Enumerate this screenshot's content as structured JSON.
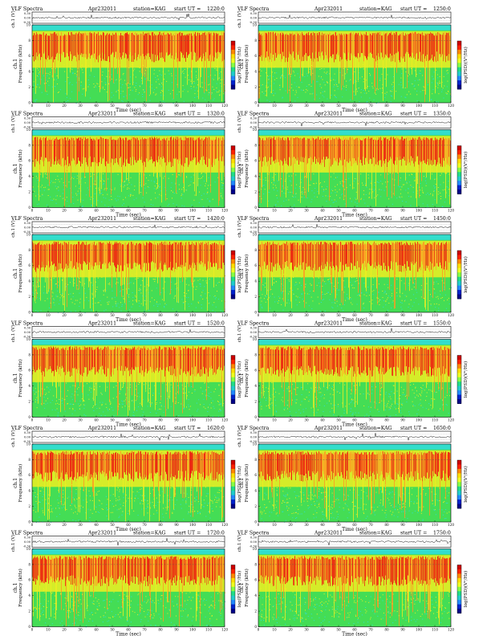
{
  "page": {
    "common": {
      "instrument": "VLF Spectra",
      "date": "Apr232011",
      "station": "station=KAG",
      "ut_prefix": "start UT =",
      "waveform_ylabel": "ch.1 (V)",
      "spec_ylabel_channel": "ch.1",
      "spec_ylabel": "Frequency (kHz)",
      "xlabel": "Time (sec)",
      "colorbar_label": "log(PSD)(V²/Hz)"
    }
  },
  "chart_data": [
    {
      "type": "heatmap",
      "start_ut": "1220:0",
      "x_ticks": [
        0,
        10,
        20,
        30,
        40,
        50,
        60,
        70,
        80,
        90,
        100,
        110,
        120
      ],
      "y_ticks": [
        0,
        2,
        4,
        6,
        8,
        10
      ],
      "wave_ticks": [
        "0.30",
        "0.00",
        "-0.30"
      ],
      "xlim": [
        0,
        120
      ],
      "ylim": [
        0,
        10
      ]
    },
    {
      "type": "heatmap",
      "start_ut": "1250:0",
      "x_ticks": [
        0,
        10,
        20,
        30,
        40,
        50,
        60,
        70,
        80,
        90,
        100,
        110,
        120
      ],
      "y_ticks": [
        0,
        2,
        4,
        6,
        8,
        10
      ],
      "wave_ticks": [
        "0.30",
        "0.00",
        "-0.30"
      ],
      "xlim": [
        0,
        120
      ],
      "ylim": [
        0,
        10
      ]
    },
    {
      "type": "heatmap",
      "start_ut": "1320:0",
      "x_ticks": [
        0,
        10,
        20,
        30,
        40,
        50,
        60,
        70,
        80,
        90,
        100,
        110,
        120
      ],
      "y_ticks": [
        0,
        2,
        4,
        6,
        8,
        10
      ],
      "wave_ticks": [
        "0.30",
        "0.00",
        "-0.30"
      ],
      "xlim": [
        0,
        120
      ],
      "ylim": [
        0,
        10
      ]
    },
    {
      "type": "heatmap",
      "start_ut": "1350:0",
      "x_ticks": [
        0,
        10,
        20,
        30,
        40,
        50,
        60,
        70,
        80,
        90,
        100,
        110,
        120
      ],
      "y_ticks": [
        0,
        2,
        4,
        6,
        8,
        10
      ],
      "wave_ticks": [
        "0.30",
        "0.00",
        "-0.30"
      ],
      "xlim": [
        0,
        120
      ],
      "ylim": [
        0,
        10
      ]
    },
    {
      "type": "heatmap",
      "start_ut": "1420:0",
      "x_ticks": [
        0,
        10,
        20,
        30,
        40,
        50,
        60,
        70,
        80,
        90,
        100,
        110,
        120
      ],
      "y_ticks": [
        0,
        2,
        4,
        6,
        8,
        10
      ],
      "wave_ticks": [
        "0.30",
        "0.00",
        "-0.30"
      ],
      "xlim": [
        0,
        120
      ],
      "ylim": [
        0,
        10
      ]
    },
    {
      "type": "heatmap",
      "start_ut": "1450:0",
      "x_ticks": [
        0,
        10,
        20,
        30,
        40,
        50,
        60,
        70,
        80,
        90,
        100,
        110,
        120
      ],
      "y_ticks": [
        0,
        2,
        4,
        6,
        8,
        10
      ],
      "wave_ticks": [
        "0.30",
        "0.00",
        "-0.30"
      ],
      "xlim": [
        0,
        120
      ],
      "ylim": [
        0,
        10
      ]
    },
    {
      "type": "heatmap",
      "start_ut": "1520:0",
      "x_ticks": [
        0,
        10,
        20,
        30,
        40,
        50,
        60,
        70,
        80,
        90,
        100,
        110,
        120
      ],
      "y_ticks": [
        0,
        2,
        4,
        6,
        8,
        10
      ],
      "wave_ticks": [
        "0.30",
        "0.00",
        "-0.30"
      ],
      "xlim": [
        0,
        120
      ],
      "ylim": [
        0,
        10
      ]
    },
    {
      "type": "heatmap",
      "start_ut": "1550:0",
      "x_ticks": [
        0,
        10,
        20,
        30,
        40,
        50,
        60,
        70,
        80,
        90,
        100,
        110,
        120
      ],
      "y_ticks": [
        0,
        2,
        4,
        6,
        8,
        10
      ],
      "wave_ticks": [
        "0.30",
        "0.00",
        "-0.30"
      ],
      "xlim": [
        0,
        120
      ],
      "ylim": [
        0,
        10
      ]
    },
    {
      "type": "heatmap",
      "start_ut": "1620:0",
      "x_ticks": [
        0,
        10,
        20,
        30,
        40,
        50,
        60,
        70,
        80,
        90,
        100,
        110,
        120
      ],
      "y_ticks": [
        0,
        2,
        4,
        6,
        8,
        10
      ],
      "wave_ticks": [
        "0.30",
        "0.00",
        "-0.30"
      ],
      "xlim": [
        0,
        120
      ],
      "ylim": [
        0,
        10
      ]
    },
    {
      "type": "heatmap",
      "start_ut": "1650:0",
      "x_ticks": [
        0,
        10,
        20,
        30,
        40,
        50,
        60,
        70,
        80,
        90,
        100,
        110,
        120
      ],
      "y_ticks": [
        0,
        2,
        4,
        6,
        8,
        10
      ],
      "wave_ticks": [
        "0.30",
        "0.00",
        "-0.30"
      ],
      "xlim": [
        0,
        120
      ],
      "ylim": [
        0,
        10
      ]
    },
    {
      "type": "heatmap",
      "start_ut": "1720:0",
      "x_ticks": [
        0,
        10,
        20,
        30,
        40,
        50,
        60,
        70,
        80,
        90,
        100,
        110,
        120
      ],
      "y_ticks": [
        0,
        2,
        4,
        6,
        8,
        10
      ],
      "wave_ticks": [
        "0.30",
        "0.00",
        "-0.30"
      ],
      "xlim": [
        0,
        120
      ],
      "ylim": [
        0,
        10
      ]
    },
    {
      "type": "heatmap",
      "start_ut": "1750:0",
      "x_ticks": [
        0,
        10,
        20,
        30,
        40,
        50,
        60,
        70,
        80,
        90,
        100,
        110,
        120
      ],
      "y_ticks": [
        0,
        2,
        4,
        6,
        8,
        10
      ],
      "wave_ticks": [
        "0.30",
        "0.00",
        "-0.30"
      ],
      "xlim": [
        0,
        120
      ],
      "ylim": [
        0,
        10
      ]
    }
  ]
}
